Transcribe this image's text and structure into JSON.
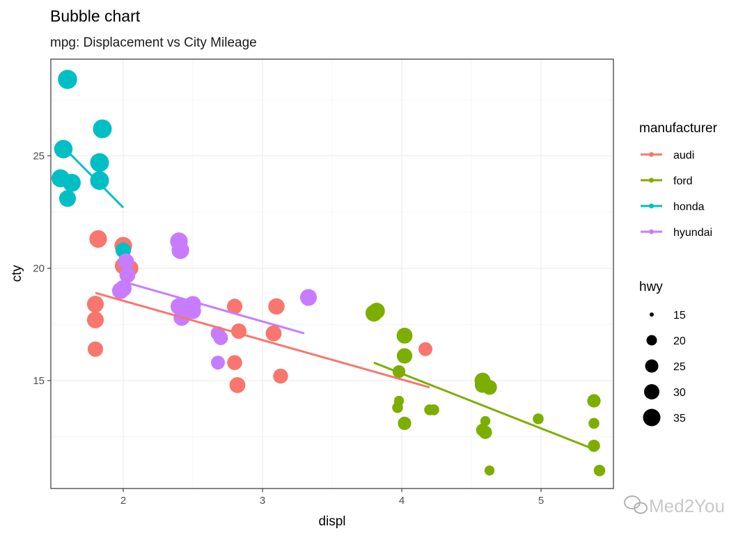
{
  "chart_data": {
    "type": "scatter",
    "title": "Bubble chart",
    "subtitle": "mpg: Displacement vs City Mileage",
    "xlabel": "displ",
    "ylabel": "cty",
    "xlim": [
      1.48,
      5.52
    ],
    "ylim": [
      10.2,
      29.3
    ],
    "x_ticks": [
      2,
      3,
      4,
      5
    ],
    "y_ticks": [
      15,
      20,
      25
    ],
    "grid": true,
    "legend_placement": "right",
    "color_legend": {
      "title": "manufacturer",
      "entries": [
        {
          "name": "audi",
          "color": "#F8766D"
        },
        {
          "name": "ford",
          "color": "#7CAE00"
        },
        {
          "name": "honda",
          "color": "#00BFC4"
        },
        {
          "name": "hyundai",
          "color": "#C77CFF"
        }
      ]
    },
    "size_legend": {
      "title": "hwy",
      "values": [
        15,
        20,
        25,
        30,
        35
      ],
      "color": "#000000"
    },
    "series": [
      {
        "name": "audi",
        "color": "#F8766D",
        "points": [
          {
            "x": 1.8,
            "y": 18.4,
            "hwy": 29
          },
          {
            "x": 1.8,
            "y": 17.7,
            "hwy": 29
          },
          {
            "x": 1.8,
            "y": 16.4,
            "hwy": 26
          },
          {
            "x": 1.82,
            "y": 21.3,
            "hwy": 31
          },
          {
            "x": 2.0,
            "y": 21.0,
            "hwy": 31
          },
          {
            "x": 2.0,
            "y": 20.1,
            "hwy": 29
          },
          {
            "x": 2.05,
            "y": 20.0,
            "hwy": 28
          },
          {
            "x": 2.8,
            "y": 18.3,
            "hwy": 26
          },
          {
            "x": 2.83,
            "y": 17.2,
            "hwy": 26
          },
          {
            "x": 2.8,
            "y": 15.8,
            "hwy": 25
          },
          {
            "x": 2.82,
            "y": 14.8,
            "hwy": 27
          },
          {
            "x": 3.1,
            "y": 18.3,
            "hwy": 28
          },
          {
            "x": 3.08,
            "y": 17.1,
            "hwy": 27
          },
          {
            "x": 3.13,
            "y": 15.2,
            "hwy": 25
          },
          {
            "x": 4.17,
            "y": 16.4,
            "hwy": 23
          }
        ],
        "trend": [
          {
            "x": 1.8,
            "y": 18.9
          },
          {
            "x": 4.2,
            "y": 14.7
          }
        ]
      },
      {
        "name": "ford",
        "color": "#7CAE00",
        "points": [
          {
            "x": 3.8,
            "y": 18.0,
            "hwy": 29
          },
          {
            "x": 3.82,
            "y": 18.1,
            "hwy": 28
          },
          {
            "x": 4.02,
            "y": 17.0,
            "hwy": 27
          },
          {
            "x": 4.02,
            "y": 16.1,
            "hwy": 26
          },
          {
            "x": 3.98,
            "y": 15.4,
            "hwy": 21
          },
          {
            "x": 3.98,
            "y": 14.1,
            "hwy": 17
          },
          {
            "x": 3.97,
            "y": 13.8,
            "hwy": 18
          },
          {
            "x": 4.02,
            "y": 13.1,
            "hwy": 22
          },
          {
            "x": 4.2,
            "y": 13.7,
            "hwy": 18
          },
          {
            "x": 4.23,
            "y": 13.7,
            "hwy": 18
          },
          {
            "x": 4.58,
            "y": 15.0,
            "hwy": 27
          },
          {
            "x": 4.58,
            "y": 14.8,
            "hwy": 26
          },
          {
            "x": 4.63,
            "y": 14.7,
            "hwy": 25
          },
          {
            "x": 4.6,
            "y": 13.2,
            "hwy": 17
          },
          {
            "x": 4.58,
            "y": 12.8,
            "hwy": 21
          },
          {
            "x": 4.6,
            "y": 12.7,
            "hwy": 22
          },
          {
            "x": 4.63,
            "y": 11.0,
            "hwy": 17
          },
          {
            "x": 4.98,
            "y": 13.3,
            "hwy": 18
          },
          {
            "x": 5.38,
            "y": 14.1,
            "hwy": 22
          },
          {
            "x": 5.38,
            "y": 13.1,
            "hwy": 18
          },
          {
            "x": 5.38,
            "y": 12.1,
            "hwy": 20
          },
          {
            "x": 5.42,
            "y": 11.0,
            "hwy": 19
          }
        ],
        "trend": [
          {
            "x": 3.8,
            "y": 15.8
          },
          {
            "x": 5.4,
            "y": 11.9
          }
        ]
      },
      {
        "name": "honda",
        "color": "#00BFC4",
        "points": [
          {
            "x": 1.6,
            "y": 28.4,
            "hwy": 35
          },
          {
            "x": 1.85,
            "y": 26.2,
            "hwy": 34
          },
          {
            "x": 1.57,
            "y": 25.3,
            "hwy": 33
          },
          {
            "x": 1.83,
            "y": 24.7,
            "hwy": 34
          },
          {
            "x": 1.55,
            "y": 24.0,
            "hwy": 32
          },
          {
            "x": 1.63,
            "y": 23.8,
            "hwy": 32
          },
          {
            "x": 1.83,
            "y": 23.9,
            "hwy": 34
          },
          {
            "x": 1.6,
            "y": 23.1,
            "hwy": 29
          },
          {
            "x": 2.0,
            "y": 20.8,
            "hwy": 26
          }
        ],
        "trend": [
          {
            "x": 1.6,
            "y": 25.2
          },
          {
            "x": 2.0,
            "y": 22.7
          }
        ]
      },
      {
        "name": "hyundai",
        "color": "#C77CFF",
        "points": [
          {
            "x": 2.02,
            "y": 20.3,
            "hwy": 27
          },
          {
            "x": 2.03,
            "y": 19.7,
            "hwy": 27
          },
          {
            "x": 2.0,
            "y": 19.1,
            "hwy": 29
          },
          {
            "x": 1.98,
            "y": 19.0,
            "hwy": 29
          },
          {
            "x": 2.4,
            "y": 21.2,
            "hwy": 31
          },
          {
            "x": 2.41,
            "y": 20.8,
            "hwy": 31
          },
          {
            "x": 2.4,
            "y": 18.3,
            "hwy": 29
          },
          {
            "x": 2.42,
            "y": 17.8,
            "hwy": 28
          },
          {
            "x": 2.5,
            "y": 18.4,
            "hwy": 28
          },
          {
            "x": 2.5,
            "y": 18.1,
            "hwy": 28
          },
          {
            "x": 2.68,
            "y": 17.1,
            "hwy": 24
          },
          {
            "x": 2.7,
            "y": 16.9,
            "hwy": 24
          },
          {
            "x": 2.68,
            "y": 15.8,
            "hwy": 23
          },
          {
            "x": 3.33,
            "y": 18.7,
            "hwy": 29
          }
        ],
        "trend": [
          {
            "x": 2.0,
            "y": 19.4
          },
          {
            "x": 3.3,
            "y": 17.1
          }
        ]
      }
    ]
  },
  "watermark": {
    "text": "Med2You"
  }
}
